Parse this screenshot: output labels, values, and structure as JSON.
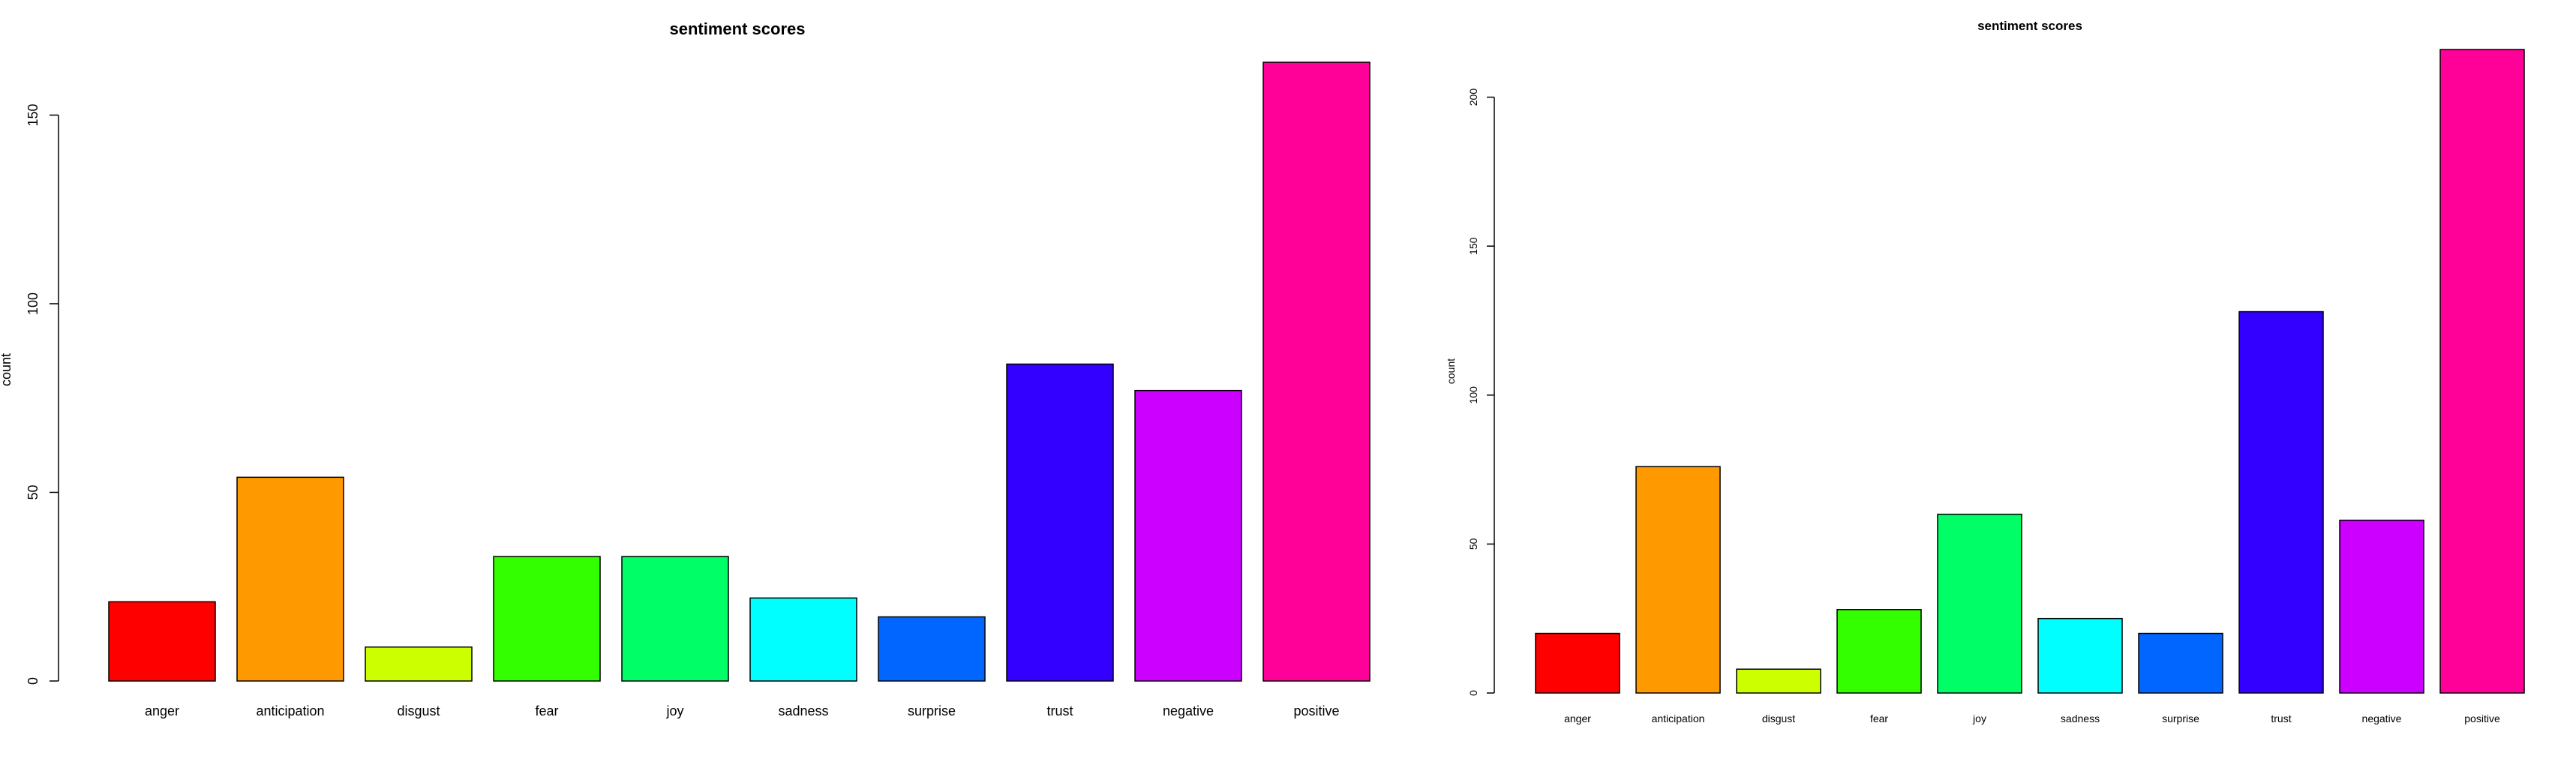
{
  "chart_data": [
    {
      "type": "bar",
      "title": "sentiment scores",
      "ylabel": "count",
      "xlabel": "",
      "ylim": [
        0,
        165
      ],
      "yticks": [
        0,
        50,
        100,
        150
      ],
      "categories": [
        "anger",
        "anticipation",
        "disgust",
        "fear",
        "joy",
        "sadness",
        "surprise",
        "trust",
        "negative",
        "positive"
      ],
      "values": [
        21,
        54,
        9,
        33,
        33,
        22,
        17,
        84,
        77,
        164
      ],
      "colors": [
        "#FF0000",
        "#FF9900",
        "#CCFF00",
        "#33FF00",
        "#00FF66",
        "#00FFFF",
        "#0066FF",
        "#3300FF",
        "#CC00FF",
        "#FF0099"
      ],
      "grid": false,
      "legend": "none"
    },
    {
      "type": "bar",
      "title": "sentiment scores",
      "ylabel": "count",
      "xlabel": "",
      "ylim": [
        0,
        216
      ],
      "yticks": [
        0,
        50,
        100,
        150,
        200
      ],
      "categories": [
        "anger",
        "anticipation",
        "disgust",
        "fear",
        "joy",
        "sadness",
        "surprise",
        "trust",
        "negative",
        "positive"
      ],
      "values": [
        20,
        76,
        8,
        28,
        60,
        25,
        20,
        128,
        58,
        216
      ],
      "colors": [
        "#FF0000",
        "#FF9900",
        "#CCFF00",
        "#33FF00",
        "#00FF66",
        "#00FFFF",
        "#0066FF",
        "#3300FF",
        "#CC00FF",
        "#FF0099"
      ],
      "grid": false,
      "legend": "none"
    }
  ]
}
